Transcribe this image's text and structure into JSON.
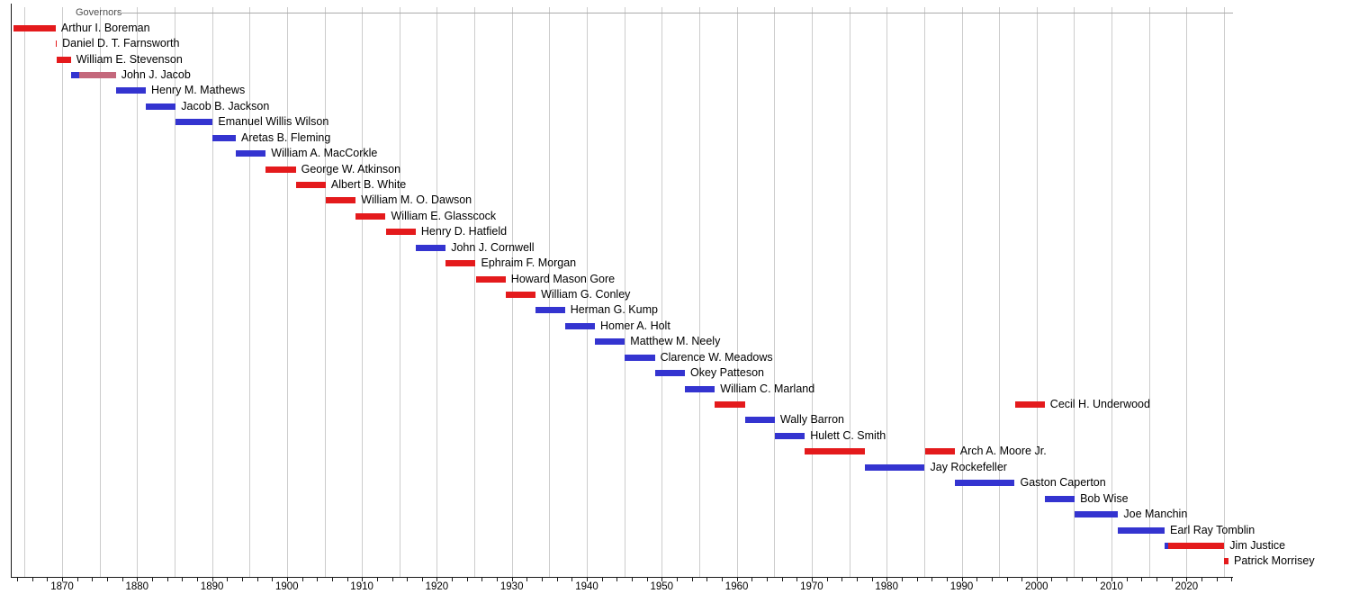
{
  "title": "Governors",
  "colors": {
    "republican": "#e41a1c",
    "democratic": "#3434d0",
    "independent": "#c4687c",
    "grid": "#cccccc",
    "axis": "#1a1a1a",
    "title_text": "#4d4d4d"
  },
  "chart_data": {
    "type": "timeline",
    "title": "Governors",
    "x_axis": {
      "start_year": 1863.16,
      "end_year": 2026.2,
      "major_tick_labels": [
        1870,
        1880,
        1890,
        1900,
        1910,
        1920,
        1930,
        1940,
        1950,
        1960,
        1970,
        1980,
        1990,
        2000,
        2010,
        2020
      ],
      "minor_tick_start": 1864,
      "minor_tick_end": 2026,
      "minor_tick_step": 2,
      "gridline_start": 1865,
      "gridline_end": 2025,
      "gridline_step": 5
    },
    "governors": [
      {
        "name": "Arthur I. Boreman",
        "terms": [
          {
            "start": 1863.47,
            "end": 1869.15,
            "party": "republican"
          }
        ]
      },
      {
        "name": "Daniel D. T. Farnsworth",
        "terms": [
          {
            "start": 1869.15,
            "end": 1869.3,
            "party": "republican"
          }
        ]
      },
      {
        "name": "William E. Stevenson",
        "terms": [
          {
            "start": 1869.3,
            "end": 1871.17,
            "party": "republican"
          }
        ]
      },
      {
        "name": "John J. Jacob",
        "terms": [
          {
            "start": 1871.17,
            "end": 1872.3,
            "party": "democratic"
          },
          {
            "start": 1872.3,
            "end": 1877.17,
            "party": "independent"
          }
        ]
      },
      {
        "name": "Henry M. Mathews",
        "terms": [
          {
            "start": 1877.17,
            "end": 1881.17,
            "party": "democratic"
          }
        ]
      },
      {
        "name": "Jacob B. Jackson",
        "terms": [
          {
            "start": 1881.17,
            "end": 1885.17,
            "party": "democratic"
          }
        ]
      },
      {
        "name": "Emanuel Willis Wilson",
        "terms": [
          {
            "start": 1885.17,
            "end": 1890.1,
            "party": "democratic"
          }
        ]
      },
      {
        "name": "Aretas B. Fleming",
        "terms": [
          {
            "start": 1890.1,
            "end": 1893.17,
            "party": "democratic"
          }
        ]
      },
      {
        "name": "William A. MacCorkle",
        "terms": [
          {
            "start": 1893.17,
            "end": 1897.17,
            "party": "democratic"
          }
        ]
      },
      {
        "name": "George W. Atkinson",
        "terms": [
          {
            "start": 1897.17,
            "end": 1901.17,
            "party": "republican"
          }
        ]
      },
      {
        "name": "Albert B. White",
        "terms": [
          {
            "start": 1901.17,
            "end": 1905.17,
            "party": "republican"
          }
        ]
      },
      {
        "name": "William M. O. Dawson",
        "terms": [
          {
            "start": 1905.17,
            "end": 1909.17,
            "party": "republican"
          }
        ]
      },
      {
        "name": "William E. Glasscock",
        "terms": [
          {
            "start": 1909.17,
            "end": 1913.17,
            "party": "republican"
          }
        ]
      },
      {
        "name": "Henry D. Hatfield",
        "terms": [
          {
            "start": 1913.17,
            "end": 1917.17,
            "party": "republican"
          }
        ]
      },
      {
        "name": "John J. Cornwell",
        "terms": [
          {
            "start": 1917.17,
            "end": 1921.17,
            "party": "democratic"
          }
        ]
      },
      {
        "name": "Ephraim F. Morgan",
        "terms": [
          {
            "start": 1921.17,
            "end": 1925.17,
            "party": "republican"
          }
        ]
      },
      {
        "name": "Howard Mason Gore",
        "terms": [
          {
            "start": 1925.17,
            "end": 1929.17,
            "party": "republican"
          }
        ]
      },
      {
        "name": "William G. Conley",
        "terms": [
          {
            "start": 1929.17,
            "end": 1933.17,
            "party": "republican"
          }
        ]
      },
      {
        "name": "Herman G. Kump",
        "terms": [
          {
            "start": 1933.17,
            "end": 1937.08,
            "party": "democratic"
          }
        ]
      },
      {
        "name": "Homer A. Holt",
        "terms": [
          {
            "start": 1937.08,
            "end": 1941.08,
            "party": "democratic"
          }
        ]
      },
      {
        "name": "Matthew M. Neely",
        "terms": [
          {
            "start": 1941.08,
            "end": 1945.08,
            "party": "democratic"
          }
        ]
      },
      {
        "name": "Clarence W. Meadows",
        "terms": [
          {
            "start": 1945.08,
            "end": 1949.08,
            "party": "democratic"
          }
        ]
      },
      {
        "name": "Okey Patteson",
        "terms": [
          {
            "start": 1949.08,
            "end": 1953.08,
            "party": "democratic"
          }
        ]
      },
      {
        "name": "William C. Marland",
        "terms": [
          {
            "start": 1953.08,
            "end": 1957.08,
            "party": "democratic"
          }
        ]
      },
      {
        "name": "Cecil H. Underwood",
        "terms": [
          {
            "start": 1957.08,
            "end": 1961.08,
            "party": "republican"
          },
          {
            "start": 1997.08,
            "end": 2001.08,
            "party": "republican"
          }
        ]
      },
      {
        "name": "Wally Barron",
        "terms": [
          {
            "start": 1961.08,
            "end": 1965.08,
            "party": "democratic"
          }
        ]
      },
      {
        "name": "Hulett C. Smith",
        "terms": [
          {
            "start": 1965.08,
            "end": 1969.08,
            "party": "democratic"
          }
        ]
      },
      {
        "name": "Arch A. Moore Jr.",
        "terms": [
          {
            "start": 1969.08,
            "end": 1977.08,
            "party": "republican"
          },
          {
            "start": 1985.08,
            "end": 1989.08,
            "party": "republican"
          }
        ]
      },
      {
        "name": "Jay Rockefeller",
        "terms": [
          {
            "start": 1977.08,
            "end": 1985.08,
            "party": "democratic"
          }
        ]
      },
      {
        "name": "Gaston Caperton",
        "terms": [
          {
            "start": 1989.08,
            "end": 1997.08,
            "party": "democratic"
          }
        ]
      },
      {
        "name": "Bob Wise",
        "terms": [
          {
            "start": 2001.08,
            "end": 2005.08,
            "party": "democratic"
          }
        ]
      },
      {
        "name": "Joe Manchin",
        "terms": [
          {
            "start": 2005.08,
            "end": 2010.88,
            "party": "democratic"
          }
        ]
      },
      {
        "name": "Earl Ray Tomblin",
        "terms": [
          {
            "start": 2010.88,
            "end": 2017.08,
            "party": "democratic"
          }
        ]
      },
      {
        "name": "Jim Justice",
        "terms": [
          {
            "start": 2017.08,
            "end": 2017.6,
            "party": "democratic"
          },
          {
            "start": 2017.6,
            "end": 2025.04,
            "party": "republican"
          }
        ]
      },
      {
        "name": "Patrick Morrisey",
        "terms": [
          {
            "start": 2025.04,
            "end": 2025.6,
            "party": "republican"
          }
        ]
      }
    ]
  }
}
